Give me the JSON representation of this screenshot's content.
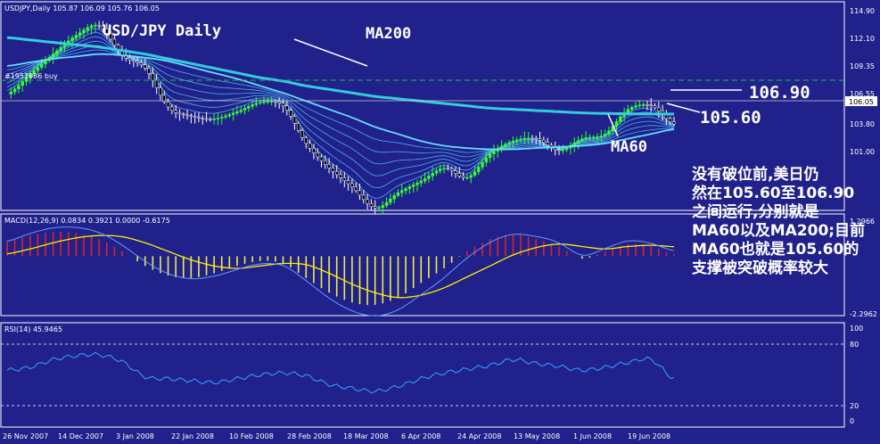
{
  "header": {
    "main_title": "USDJPY,Daily  105.87 106.09 105.76 106.05",
    "macd_title": "MACD(12,26,9) 0.0834 0.3921 0.0000 -0.6175",
    "rsi_title": "RSI(14) 45.9465"
  },
  "annotations": {
    "pair_title": "USD/JPY Daily",
    "ma200": "MA200",
    "ma60": "MA60",
    "level_high": "106.90",
    "level_low": "105.60",
    "order_label": "#1953986 buy",
    "comment_lines": [
      "没有破位前,美日仍",
      "然在105.60至106.90",
      "之间运行,分别就是",
      "MA60以及MA200;目前",
      "MA60也就是105.60的",
      "支撑被突破概率较大"
    ]
  },
  "price_axis": {
    "ticks": [
      "114.90",
      "112.10",
      "109.35",
      "106.55",
      "103.80",
      "101.00"
    ],
    "current_price": "106.05",
    "macd_top": "1.2966",
    "macd_bottom": "-2.2962",
    "rsi_ticks": [
      "100",
      "80",
      "20",
      "0"
    ]
  },
  "date_axis": [
    "26 Nov 2007",
    "14 Dec 2007",
    "3 Jan 2008",
    "22 Jan 2008",
    "10 Feb 2008",
    "28 Feb 2008",
    "18 Mar 2008",
    "6 Apr 2008",
    "24 Apr 2008",
    "13 May 2008",
    "1 Jun 2008",
    "19 Jun 2008"
  ],
  "colors": {
    "background": "#20218a",
    "grid": "#ffffff",
    "price_up": "#33ff33",
    "ma_fan": "#55c8ff",
    "ma200": "#33ccdd",
    "macd_pos": "#dd2222",
    "macd_neg": "#eeee44",
    "signal": "#ffee00",
    "rsi_line": "#3399ff",
    "order_line": "#22bb44"
  },
  "chart_data": [
    {
      "type": "line",
      "panel": "price",
      "ylim": [
        99.0,
        116.0
      ],
      "x": [
        "26 Nov 2007",
        "3 Dec 2007",
        "10 Dec 2007",
        "14 Dec 2007",
        "24 Dec 2007",
        "3 Jan 2008",
        "10 Jan 2008",
        "17 Jan 2008",
        "22 Jan 2008",
        "31 Jan 2008",
        "10 Feb 2008",
        "17 Feb 2008",
        "24 Feb 2008",
        "28 Feb 2008",
        "7 Mar 2008",
        "14 Mar 2008",
        "18 Mar 2008",
        "25 Mar 2008",
        "1 Apr 2008",
        "6 Apr 2008",
        "15 Apr 2008",
        "24 Apr 2008",
        "1 May 2008",
        "8 May 2008",
        "13 May 2008",
        "22 May 2008",
        "1 Jun 2008",
        "10 Jun 2008",
        "19 Jun 2008",
        "27 Jun 2008"
      ],
      "series": [
        {
          "name": "USDJPY",
          "values": [
            108.6,
            110.3,
            112.0,
            113.6,
            114.4,
            111.9,
            110.8,
            107.5,
            106.7,
            106.5,
            107.1,
            107.9,
            107.6,
            104.4,
            102.3,
            100.7,
            98.9,
            100.2,
            101.2,
            102.3,
            101.5,
            103.5,
            104.6,
            104.8,
            103.8,
            104.8,
            105.2,
            107.3,
            107.6,
            106.05
          ]
        },
        {
          "name": "MA60",
          "values": [
            111.0,
            111.3,
            111.6,
            111.8,
            112.0,
            111.9,
            111.7,
            111.4,
            110.9,
            110.4,
            109.9,
            109.3,
            108.7,
            108.0,
            107.3,
            106.6,
            105.8,
            105.2,
            104.6,
            104.2,
            104.0,
            103.9,
            103.9,
            104.0,
            104.1,
            104.2,
            104.4,
            104.8,
            105.2,
            105.6
          ]
        },
        {
          "name": "MA200",
          "values": [
            113.4,
            113.2,
            113.0,
            112.8,
            112.6,
            112.3,
            112.0,
            111.6,
            111.2,
            110.8,
            110.4,
            110.0,
            109.7,
            109.3,
            109.0,
            108.7,
            108.4,
            108.2,
            108.0,
            107.8,
            107.6,
            107.4,
            107.3,
            107.2,
            107.1,
            107.0,
            106.95,
            106.92,
            106.9,
            106.9
          ]
        }
      ]
    },
    {
      "type": "bar",
      "panel": "macd",
      "ylim": [
        -2.2962,
        1.2966
      ],
      "values": [
        0.6,
        0.85,
        1.0,
        0.95,
        0.7,
        0.2,
        -0.4,
        -0.8,
        -0.9,
        -0.7,
        -0.4,
        -0.2,
        -0.3,
        -0.9,
        -1.5,
        -1.9,
        -2.0,
        -1.7,
        -1.1,
        -0.5,
        0.2,
        0.7,
        0.9,
        0.7,
        0.4,
        -0.1,
        0.2,
        0.5,
        0.4,
        0.08
      ],
      "signal": [
        0.1,
        0.3,
        0.55,
        0.75,
        0.85,
        0.8,
        0.55,
        0.2,
        -0.15,
        -0.4,
        -0.5,
        -0.4,
        -0.3,
        -0.35,
        -0.7,
        -1.15,
        -1.5,
        -1.7,
        -1.6,
        -1.3,
        -0.85,
        -0.4,
        0.05,
        0.35,
        0.5,
        0.4,
        0.3,
        0.4,
        0.45,
        0.39
      ]
    },
    {
      "type": "line",
      "panel": "rsi",
      "ylim": [
        0,
        100
      ],
      "values": [
        55,
        58,
        66,
        70,
        71,
        64,
        48,
        46,
        44,
        42,
        46,
        50,
        52,
        49,
        40,
        36,
        33,
        38,
        46,
        52,
        56,
        60,
        66,
        62,
        59,
        55,
        58,
        63,
        66,
        46
      ]
    }
  ]
}
